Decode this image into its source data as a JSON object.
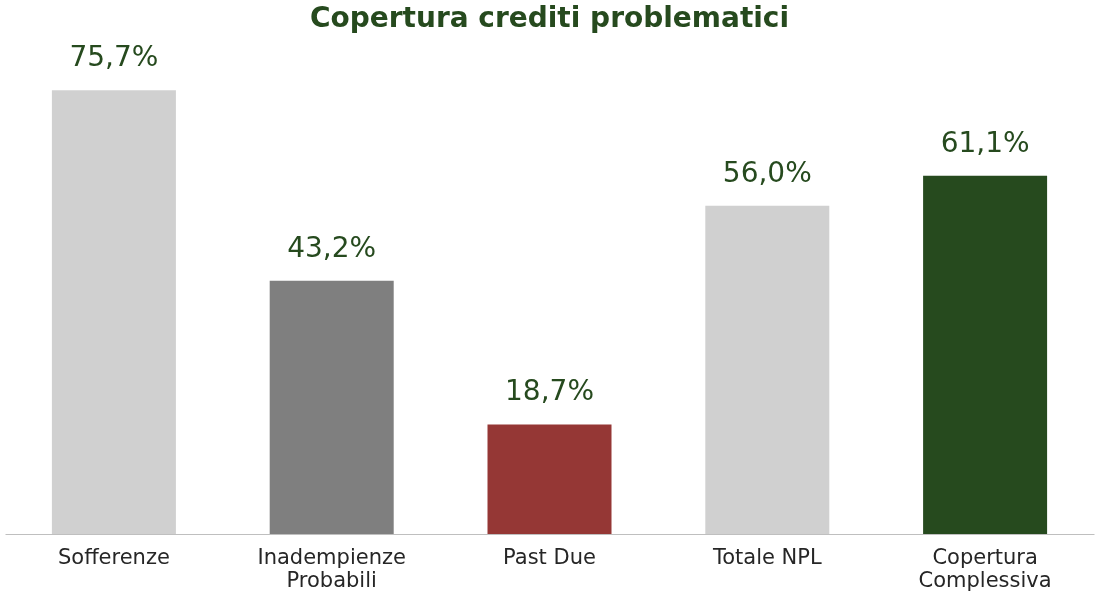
{
  "chart_data": {
    "type": "bar",
    "title": "Copertura crediti problematici",
    "categories": [
      "Sofferenze",
      "Inadempienze Probabili",
      "Past Due",
      "Totale NPL",
      "Copertura Complessiva"
    ],
    "values": [
      75.7,
      43.2,
      18.7,
      56.0,
      61.1
    ],
    "colors": [
      "#d0d0d0",
      "#7f7f7f",
      "#953735",
      "#d0d0d0",
      "#264a1e"
    ],
    "value_labels": [
      "75,7%",
      "43,2%",
      "18,7%",
      "56,0%",
      "61,1%"
    ],
    "grid": false
  }
}
